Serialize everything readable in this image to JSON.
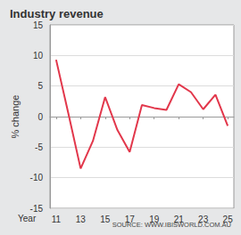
{
  "chart_data": {
    "type": "line",
    "title": "Industry revenue",
    "xlabel": "Year",
    "ylabel": "% change",
    "annotation": "SOURCE: WWW.IBISWORLD.COM.AU",
    "x": [
      11,
      12,
      13,
      14,
      15,
      16,
      17,
      18,
      19,
      20,
      21,
      22,
      23,
      24,
      25
    ],
    "values": [
      9.3,
      0.5,
      -8.5,
      -4,
      3.2,
      -2.2,
      -5.8,
      1.9,
      1.4,
      1.1,
      5.3,
      4,
      1.2,
      3.6,
      -1.5
    ],
    "color": "#e2374b",
    "xlim": [
      10.5,
      25.5
    ],
    "xticks": [
      11,
      13,
      15,
      17,
      19,
      21,
      23,
      25
    ],
    "ylim": [
      -15,
      15
    ],
    "yticks": [
      -15,
      -10,
      -5,
      0,
      5,
      10,
      15
    ],
    "grid": true
  }
}
